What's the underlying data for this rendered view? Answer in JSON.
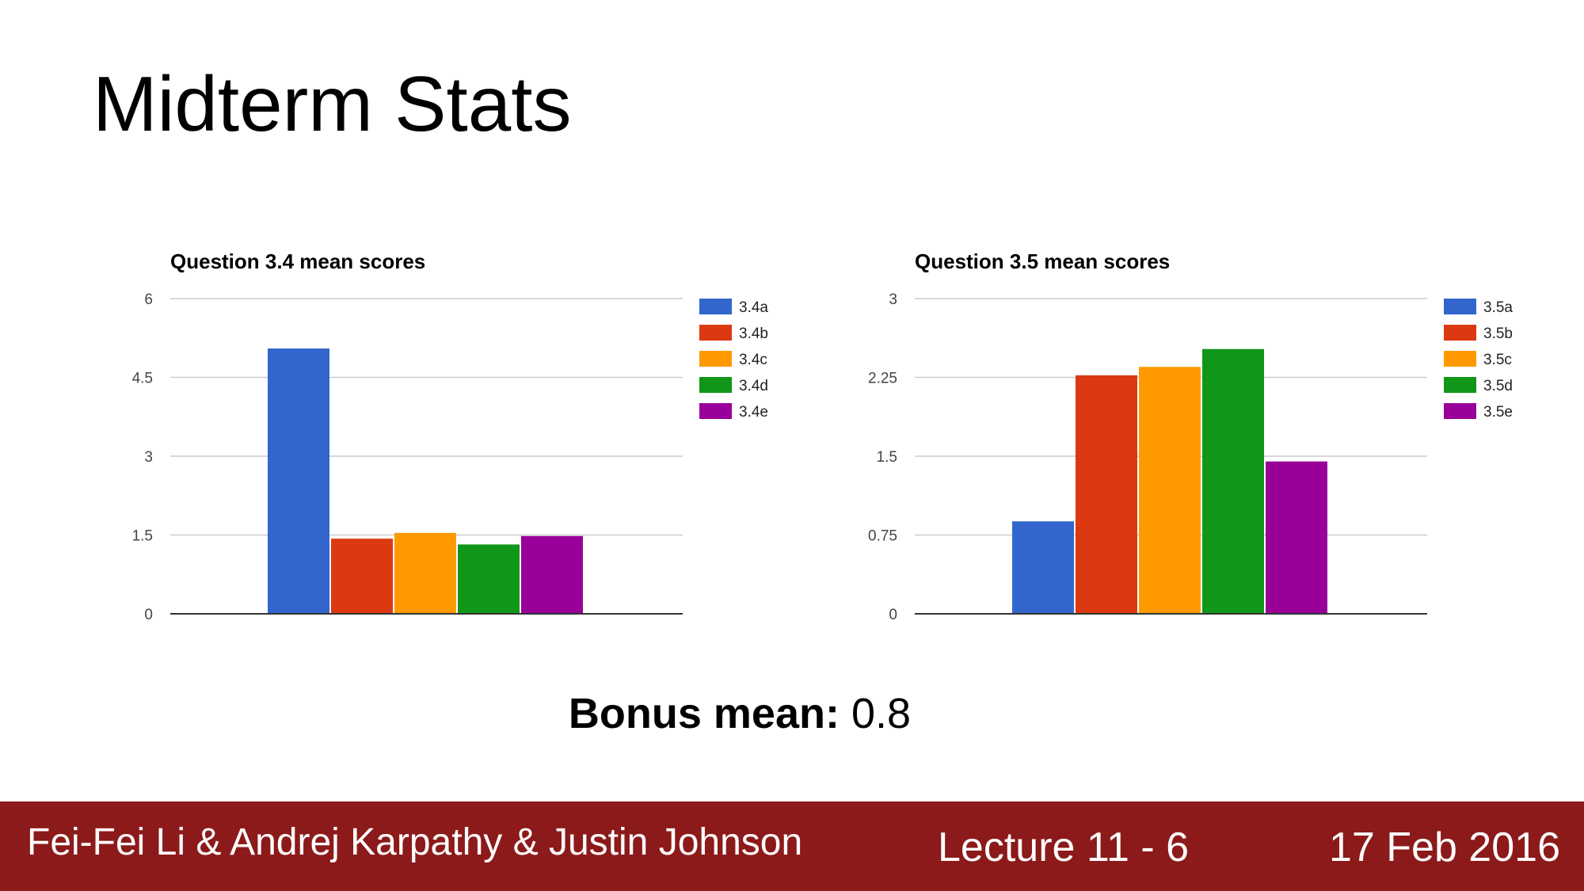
{
  "slide": {
    "title": "Midterm Stats",
    "bonus_label": "Bonus mean:",
    "bonus_value": "0.8"
  },
  "footer": {
    "authors": "Fei-Fei Li & Andrej Karpathy & Justin Johnson",
    "lecture": "Lecture 11 -   6",
    "date": "17 Feb 2016"
  },
  "colors": [
    "#3366cc",
    "#dc3912",
    "#ff9900",
    "#109618",
    "#990099"
  ],
  "chart_data": [
    {
      "type": "bar",
      "title": "Question 3.4 mean scores",
      "xlabel": "",
      "ylabel": "",
      "ylim": [
        0,
        6
      ],
      "yticks": [
        "0",
        "1.5",
        "3",
        "4.5",
        "6"
      ],
      "grid": true,
      "legend_position": "right",
      "series": [
        {
          "name": "3.4a",
          "value": 5.05
        },
        {
          "name": "3.4b",
          "value": 1.43
        },
        {
          "name": "3.4c",
          "value": 1.54
        },
        {
          "name": "3.4d",
          "value": 1.32
        },
        {
          "name": "3.4e",
          "value": 1.48
        }
      ]
    },
    {
      "type": "bar",
      "title": "Question 3.5 mean scores",
      "xlabel": "",
      "ylabel": "",
      "ylim": [
        0,
        3
      ],
      "yticks": [
        "0",
        "0.75",
        "1.5",
        "2.25",
        "3"
      ],
      "grid": true,
      "legend_position": "right",
      "series": [
        {
          "name": "3.5a",
          "value": 0.88
        },
        {
          "name": "3.5b",
          "value": 2.27
        },
        {
          "name": "3.5c",
          "value": 2.35
        },
        {
          "name": "3.5d",
          "value": 2.52
        },
        {
          "name": "3.5e",
          "value": 1.45
        }
      ]
    }
  ]
}
